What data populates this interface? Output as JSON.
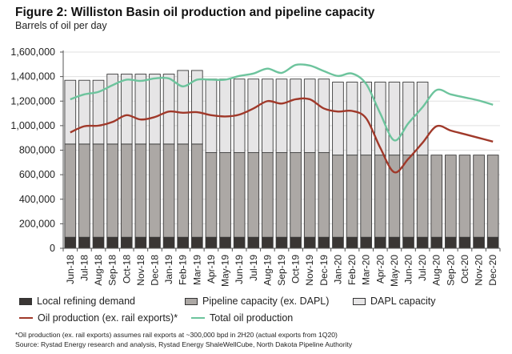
{
  "chart_data": {
    "type": "bar",
    "title": "Figure 2: Williston Basin oil production and pipeline capacity",
    "subtitle": "Barrels of oil per day",
    "xlabel": "",
    "ylabel": "Barrels of oil per day",
    "ylim": [
      0,
      1600000
    ],
    "yticks": [
      0,
      200000,
      400000,
      600000,
      800000,
      1000000,
      1200000,
      1400000,
      1600000
    ],
    "ytick_labels": [
      "0",
      "200,000",
      "400,000",
      "600,000",
      "800,000",
      "1,000,000",
      "1,200,000",
      "1,400,000",
      "1,600,000"
    ],
    "grid": true,
    "stacked": true,
    "categories": [
      "Jun-18",
      "Jul-18",
      "Aug-18",
      "Sep-18",
      "Oct-18",
      "Nov-18",
      "Dec-18",
      "Jan-19",
      "Feb-19",
      "Mar-19",
      "Apr-19",
      "May-19",
      "Jun-19",
      "Jul-19",
      "Aug-19",
      "Sep-19",
      "Oct-19",
      "Nov-19",
      "Dec-19",
      "Jan-20",
      "Feb-20",
      "Mar-20",
      "Apr-20",
      "May-20",
      "Jun-20",
      "Jul-20",
      "Aug-20",
      "Sep-20",
      "Oct-20",
      "Nov-20",
      "Dec-20"
    ],
    "bar_series": [
      {
        "name": "Local refining demand",
        "color": "#3a3634",
        "values": [
          90000,
          90000,
          90000,
          90000,
          90000,
          90000,
          90000,
          90000,
          90000,
          90000,
          90000,
          90000,
          90000,
          90000,
          90000,
          90000,
          90000,
          90000,
          90000,
          90000,
          90000,
          90000,
          90000,
          90000,
          90000,
          90000,
          90000,
          90000,
          90000,
          90000,
          90000
        ]
      },
      {
        "name": "Pipeline capacity (ex. DAPL)",
        "color": "#aca8a5",
        "values": [
          760000,
          760000,
          760000,
          760000,
          760000,
          760000,
          760000,
          760000,
          760000,
          760000,
          690000,
          690000,
          690000,
          690000,
          690000,
          690000,
          690000,
          690000,
          690000,
          670000,
          670000,
          670000,
          670000,
          670000,
          670000,
          670000,
          670000,
          670000,
          670000,
          670000,
          670000
        ]
      },
      {
        "name": "DAPL capacity",
        "color": "#e6e5e6",
        "values": [
          520000,
          520000,
          520000,
          570000,
          570000,
          570000,
          570000,
          570000,
          600000,
          600000,
          600000,
          600000,
          600000,
          600000,
          600000,
          600000,
          600000,
          600000,
          600000,
          595000,
          595000,
          595000,
          595000,
          595000,
          595000,
          595000,
          0,
          0,
          0,
          0,
          0
        ]
      }
    ],
    "line_series": [
      {
        "name": "Oil production (ex. rail exports)*",
        "color": "#a0392a",
        "values": [
          945000,
          995000,
          1000000,
          1030000,
          1085000,
          1050000,
          1070000,
          1115000,
          1105000,
          1110000,
          1085000,
          1075000,
          1090000,
          1140000,
          1200000,
          1180000,
          1215000,
          1215000,
          1140000,
          1115000,
          1120000,
          1060000,
          820000,
          620000,
          730000,
          860000,
          995000,
          960000,
          930000,
          900000,
          870000
        ]
      },
      {
        "name": "Total oil production",
        "color": "#6dc49d",
        "values": [
          1215000,
          1255000,
          1275000,
          1330000,
          1375000,
          1365000,
          1385000,
          1385000,
          1320000,
          1375000,
          1375000,
          1375000,
          1405000,
          1425000,
          1465000,
          1430000,
          1495000,
          1490000,
          1445000,
          1405000,
          1425000,
          1340000,
          1100000,
          880000,
          1020000,
          1150000,
          1290000,
          1255000,
          1230000,
          1205000,
          1170000
        ]
      }
    ],
    "legend_position": "bottom"
  },
  "legend": [
    {
      "label": "Local refining demand",
      "kind": "box",
      "color": "#3a3634"
    },
    {
      "label": "Pipeline capacity (ex. DAPL)",
      "kind": "box",
      "color": "#aca8a5"
    },
    {
      "label": "DAPL capacity",
      "kind": "box",
      "color": "#e6e5e6"
    },
    {
      "label": "Oil production (ex. rail exports)*",
      "kind": "line",
      "color": "#a0392a"
    },
    {
      "label": "Total oil production",
      "kind": "line",
      "color": "#6dc49d"
    }
  ],
  "footnotes": {
    "note": "*Oil production (ex. rail exports) assumes rail exports at ~300,000 bpd in 2H20 (actual exports from 1Q20)",
    "source": "Source: Rystad Energy research and analysis, Rystad Energy ShaleWellCube, North Dakota Pipeline Authority"
  }
}
